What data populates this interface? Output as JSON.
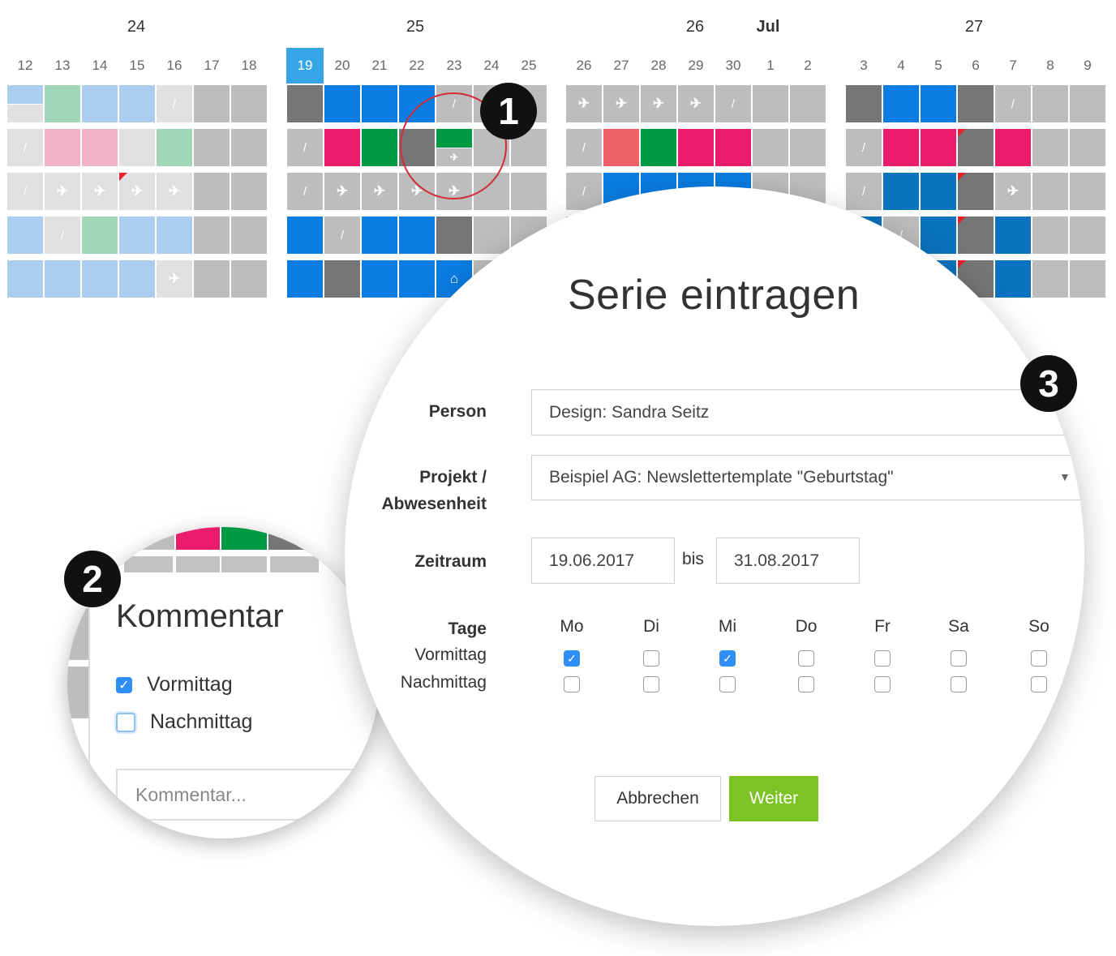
{
  "calendar": {
    "week_labels": [
      "24",
      "25",
      "26",
      "27"
    ],
    "month_label": "Jul",
    "days": [
      "12",
      "13",
      "14",
      "15",
      "16",
      "17",
      "18",
      "19",
      "20",
      "21",
      "22",
      "23",
      "24",
      "25",
      "26",
      "27",
      "28",
      "29",
      "30",
      "1",
      "2",
      "3",
      "4",
      "5",
      "6",
      "7",
      "8",
      "9"
    ],
    "today": "19",
    "colors": {
      "light_blue": "#aacdf0",
      "blue": "#0a7de3",
      "dark_blue": "#0a73c0",
      "gray": "#bdbdbd",
      "light_gray": "#e0e0e0",
      "dark_gray": "#767676",
      "pink": "#ec1c6c",
      "light_pink": "#efb2c6",
      "green": "#009a44",
      "light_green": "#a2d6b9",
      "salmon": "#ee6066"
    }
  },
  "badges": [
    "1",
    "2",
    "3"
  ],
  "comment_dialog": {
    "title": "Kommentar",
    "vormittag": "Vormittag",
    "vormittag_checked": true,
    "nachmittag": "Nachmittag",
    "nachmittag_checked": false,
    "comment_placeholder": "Kommentar..."
  },
  "series_dialog": {
    "title": "Serie eintragen",
    "person_label": "Person",
    "person_value": "Design: Sandra Seitz",
    "project_label_1": "Projekt /",
    "project_label_2": "Abwesenheit",
    "project_value": "Beispiel AG: Newslettertemplate \"Geburtstag\"",
    "period_label": "Zeitraum",
    "period_from": "19.06.2017",
    "period_sep": "bis",
    "period_to": "31.08.2017",
    "days_label": "Tage",
    "vormittag_label": "Vormittag",
    "nachmittag_label": "Nachmittag",
    "weekdays": [
      "Mo",
      "Di",
      "Mi",
      "Do",
      "Fr",
      "Sa",
      "So"
    ],
    "vormittag_checked": [
      true,
      false,
      true,
      false,
      false,
      false,
      false
    ],
    "nachmittag_checked": [
      false,
      false,
      false,
      false,
      false,
      false,
      false
    ],
    "cancel_label": "Abbrechen",
    "next_label": "Weiter",
    "accent_color": "#7cc425"
  }
}
